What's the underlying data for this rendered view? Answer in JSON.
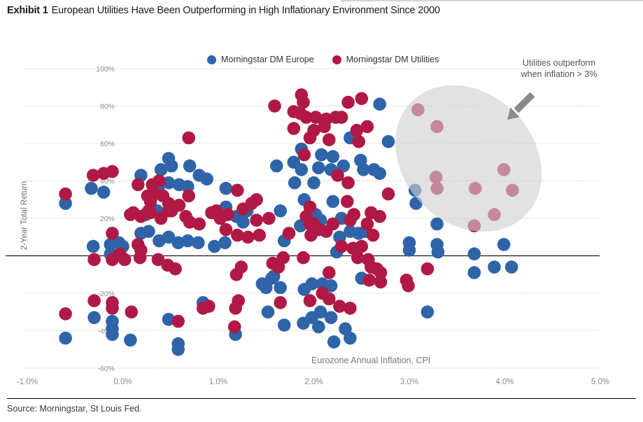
{
  "header": {
    "exhibit_label": "Exhibit 1",
    "title": "European Utilities Have Been Outperforming in High Inflationary Environment Since 2000"
  },
  "footer": {
    "source": "Source: Morningstar, St Louis Fed."
  },
  "chart_data": {
    "type": "scatter",
    "title": "Exhibit 1 European Utilities Have Been Outperforming in High Inflationary Environment Since 2000",
    "xlabel": "Eurozone Annual Inflation, CPI",
    "ylabel": "2-Year Total Return",
    "xlim": [
      -1.0,
      5.0
    ],
    "ylim": [
      -60,
      100
    ],
    "grid": "horizontal-dashed",
    "legend_position": "top-center",
    "annotation": {
      "line1": "Utilities outperform",
      "line2": "when inflation > 3%"
    },
    "highlight": {
      "center": [
        3.62,
        52
      ],
      "note": "gray ellipse over utilities points where inflation > 3%"
    },
    "x_ticks": [
      {
        "value": -1,
        "label": "-1.0%"
      },
      {
        "value": 0,
        "label": "0.0%"
      },
      {
        "value": 1,
        "label": "1.0%"
      },
      {
        "value": 2,
        "label": "2.0%"
      },
      {
        "value": 3,
        "label": "3.0%"
      },
      {
        "value": 4,
        "label": "4.0%"
      },
      {
        "value": 5,
        "label": "5.0%"
      }
    ],
    "y_ticks": [
      {
        "value": 100,
        "label": "100%"
      },
      {
        "value": 80,
        "label": "80%"
      },
      {
        "value": 60,
        "label": "60%"
      },
      {
        "value": 40,
        "label": "40%"
      },
      {
        "value": 20,
        "label": "20%"
      },
      {
        "value": 0,
        "label": "0%"
      },
      {
        "value": -20,
        "label": "-20%"
      },
      {
        "value": -40,
        "label": "-40%"
      },
      {
        "value": -60,
        "label": "-60%"
      }
    ],
    "series": [
      {
        "name": "Morningstar DM Europe",
        "color": "#2f64a8",
        "points": [
          [
            -0.6,
            28
          ],
          [
            -0.33,
            36
          ],
          [
            -0.2,
            34
          ],
          [
            -0.6,
            -44
          ],
          [
            -0.31,
            5
          ],
          [
            -0.13,
            6
          ],
          [
            -0.04,
            7
          ],
          [
            0.0,
            5
          ],
          [
            -0.13,
            1
          ],
          [
            0.19,
            43
          ],
          [
            0.37,
            36
          ],
          [
            0.36,
            24
          ],
          [
            0.24,
            22
          ],
          [
            0.48,
            52
          ],
          [
            0.51,
            48
          ],
          [
            0.4,
            46
          ],
          [
            0.7,
            48
          ],
          [
            0.8,
            43
          ],
          [
            0.88,
            41
          ],
          [
            0.48,
            39
          ],
          [
            0.59,
            38
          ],
          [
            0.68,
            37
          ],
          [
            0.19,
            12
          ],
          [
            0.27,
            13
          ],
          [
            0.38,
            8
          ],
          [
            0.48,
            10
          ],
          [
            0.58,
            7
          ],
          [
            0.68,
            8
          ],
          [
            0.79,
            7
          ],
          [
            0.96,
            5
          ],
          [
            1.07,
            7
          ],
          [
            1.26,
            18
          ],
          [
            1.07,
            24
          ],
          [
            1.19,
            21
          ],
          [
            1.3,
            24
          ],
          [
            1.08,
            36
          ],
          [
            1.08,
            26
          ],
          [
            1.65,
            24
          ],
          [
            1.61,
            48
          ],
          [
            1.79,
            50
          ],
          [
            1.87,
            57
          ],
          [
            1.87,
            46
          ],
          [
            1.8,
            39
          ],
          [
            1.9,
            30
          ],
          [
            1.69,
            8
          ],
          [
            1.86,
            16
          ],
          [
            1.46,
            -15
          ],
          [
            1.58,
            -11
          ],
          [
            1.65,
            -17
          ],
          [
            1.56,
            -12
          ],
          [
            1.5,
            -17
          ],
          [
            1.9,
            -18
          ],
          [
            1.98,
            -15
          ],
          [
            -0.3,
            -33
          ],
          [
            -0.11,
            -35
          ],
          [
            -0.11,
            -39
          ],
          [
            -0.11,
            -42
          ],
          [
            0.08,
            -45
          ],
          [
            0.48,
            -34
          ],
          [
            0.58,
            -47
          ],
          [
            0.58,
            -50
          ],
          [
            0.84,
            -25
          ],
          [
            1.18,
            -42
          ],
          [
            1.52,
            -30
          ],
          [
            1.69,
            -37
          ],
          [
            1.89,
            -36
          ],
          [
            1.98,
            -33
          ],
          [
            2.69,
            81
          ],
          [
            2.38,
            63
          ],
          [
            2.78,
            61
          ],
          [
            2.08,
            54
          ],
          [
            2.2,
            53
          ],
          [
            2.05,
            47
          ],
          [
            2.18,
            46
          ],
          [
            2.31,
            48
          ],
          [
            2.49,
            51
          ],
          [
            2.52,
            46
          ],
          [
            2.63,
            46
          ],
          [
            2.69,
            44
          ],
          [
            2.0,
            39
          ],
          [
            3.06,
            35
          ],
          [
            3.07,
            28
          ],
          [
            2.2,
            29
          ],
          [
            2.02,
            22
          ],
          [
            3.29,
            17
          ],
          [
            2.07,
            19
          ],
          [
            2.29,
            20
          ],
          [
            2.38,
            13
          ],
          [
            2.47,
            12
          ],
          [
            2.54,
            13
          ],
          [
            2.27,
            10
          ],
          [
            2.24,
            2
          ],
          [
            3.0,
            7
          ],
          [
            3.0,
            3
          ],
          [
            3.29,
            6
          ],
          [
            3.3,
            2
          ],
          [
            3.68,
            1
          ],
          [
            3.68,
            -9
          ],
          [
            3.89,
            -6
          ],
          [
            4.07,
            -6
          ],
          [
            3.99,
            6
          ],
          [
            2.5,
            -12
          ],
          [
            2.09,
            -15
          ],
          [
            2.18,
            -16
          ],
          [
            2.07,
            -30
          ],
          [
            2.18,
            -33
          ],
          [
            2.05,
            -38
          ],
          [
            2.33,
            -39
          ],
          [
            2.38,
            -44
          ],
          [
            2.21,
            -46
          ],
          [
            3.19,
            -30
          ]
        ]
      },
      {
        "name": "Morningstar DM Utilities",
        "color": "#b01945",
        "points": [
          [
            -0.6,
            33
          ],
          [
            -0.31,
            43
          ],
          [
            -0.2,
            44
          ],
          [
            -0.11,
            45
          ],
          [
            0.16,
            38
          ],
          [
            0.31,
            38
          ],
          [
            0.38,
            40
          ],
          [
            0.33,
            33
          ],
          [
            0.26,
            32
          ],
          [
            0.42,
            32
          ],
          [
            0.69,
            32
          ],
          [
            0.48,
            28
          ],
          [
            0.59,
            27
          ],
          [
            0.29,
            29
          ],
          [
            0.27,
            24
          ],
          [
            0.48,
            24
          ],
          [
            0.11,
            23
          ],
          [
            0.69,
            63
          ],
          [
            1.59,
            80
          ],
          [
            1.87,
            86
          ],
          [
            1.89,
            82
          ],
          [
            1.79,
            77
          ],
          [
            1.86,
            76
          ],
          [
            1.92,
            74
          ],
          [
            1.79,
            68
          ],
          [
            1.96,
            63
          ],
          [
            1.9,
            54
          ],
          [
            1.96,
            26
          ],
          [
            1.2,
            35
          ],
          [
            0.98,
            24
          ],
          [
            1.26,
            25
          ],
          [
            1.35,
            28
          ],
          [
            1.4,
            30
          ],
          [
            0.08,
            22
          ],
          [
            0.19,
            21
          ],
          [
            0.29,
            23
          ],
          [
            0.4,
            20
          ],
          [
            0.51,
            24
          ],
          [
            0.66,
            21
          ],
          [
            0.7,
            18
          ],
          [
            0.8,
            17
          ],
          [
            0.93,
            23
          ],
          [
            1.02,
            20
          ],
          [
            1.1,
            22
          ],
          [
            -0.11,
            12
          ],
          [
            -0.3,
            -2
          ],
          [
            -0.11,
            -2
          ],
          [
            -0.03,
            1
          ],
          [
            0.02,
            -2
          ],
          [
            0.16,
            6
          ],
          [
            0.19,
            3
          ],
          [
            0.18,
            -1
          ],
          [
            0.37,
            -2
          ],
          [
            0.47,
            -5
          ],
          [
            0.55,
            -7
          ],
          [
            1.08,
            14
          ],
          [
            1.2,
            11
          ],
          [
            1.31,
            10
          ],
          [
            1.43,
            11
          ],
          [
            1.4,
            19
          ],
          [
            1.53,
            20
          ],
          [
            1.24,
            -6
          ],
          [
            1.19,
            -10
          ],
          [
            1.21,
            -24
          ],
          [
            1.18,
            -28
          ],
          [
            1.63,
            -6
          ],
          [
            1.57,
            -4
          ],
          [
            1.74,
            12
          ],
          [
            1.92,
            21
          ],
          [
            1.96,
            17
          ],
          [
            1.97,
            11
          ],
          [
            1.89,
            -1
          ],
          [
            1.68,
            -1
          ],
          [
            1.65,
            -25
          ],
          [
            1.96,
            -24
          ],
          [
            -0.6,
            -31
          ],
          [
            -0.3,
            -24
          ],
          [
            -0.11,
            -25
          ],
          [
            -0.11,
            -28
          ],
          [
            0.09,
            -30
          ],
          [
            0.58,
            -35
          ],
          [
            0.84,
            -28
          ],
          [
            0.9,
            -27
          ],
          [
            1.17,
            -38
          ],
          [
            2.36,
            82
          ],
          [
            2.5,
            84
          ],
          [
            2.02,
            74
          ],
          [
            2.13,
            73
          ],
          [
            2.23,
            74
          ],
          [
            2.29,
            74
          ],
          [
            2.0,
            67
          ],
          [
            2.11,
            69
          ],
          [
            2.45,
            67
          ],
          [
            2.56,
            69
          ],
          [
            2.47,
            61
          ],
          [
            2.16,
            62
          ],
          [
            2.25,
            43
          ],
          [
            2.36,
            39
          ],
          [
            2.78,
            33
          ],
          [
            2.6,
            23
          ],
          [
            2.35,
            29
          ],
          [
            2.42,
            22
          ],
          [
            3.09,
            78
          ],
          [
            3.29,
            69
          ],
          [
            3.28,
            42
          ],
          [
            3.29,
            36
          ],
          [
            3.69,
            36
          ],
          [
            3.99,
            46
          ],
          [
            4.08,
            35
          ],
          [
            3.89,
            22
          ],
          [
            3.68,
            16
          ],
          [
            2.05,
            14
          ],
          [
            2.13,
            13
          ],
          [
            2.2,
            17
          ],
          [
            2.38,
            19
          ],
          [
            2.56,
            17
          ],
          [
            2.69,
            21
          ],
          [
            2.62,
            11
          ],
          [
            2.29,
            5
          ],
          [
            2.41,
            4
          ],
          [
            2.5,
            5
          ],
          [
            2.46,
            -1
          ],
          [
            2.57,
            -2
          ],
          [
            2.6,
            -6
          ],
          [
            2.66,
            -7
          ],
          [
            2.7,
            -9
          ],
          [
            2.58,
            -13
          ],
          [
            2.7,
            -14
          ],
          [
            2.16,
            -9
          ],
          [
            2.09,
            -20
          ],
          [
            2.16,
            -23
          ],
          [
            2.27,
            -27
          ],
          [
            2.38,
            -28
          ],
          [
            3.19,
            -7
          ],
          [
            2.97,
            -13
          ],
          [
            2.99,
            -16
          ],
          [
            2.0,
            17
          ]
        ]
      }
    ]
  }
}
